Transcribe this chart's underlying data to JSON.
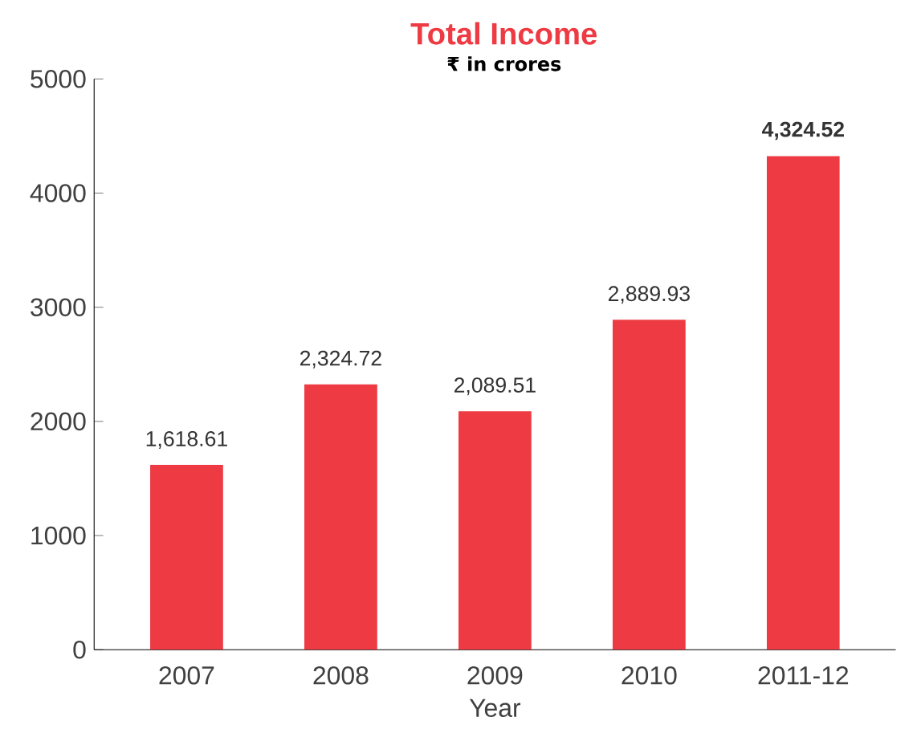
{
  "chart_data": {
    "type": "bar",
    "title": "Total Income",
    "subtitle": "₹ in crores",
    "xlabel": "Year",
    "categories": [
      "2007",
      "2008",
      "2009",
      "2010",
      "2011-12"
    ],
    "values": [
      1618.61,
      2324.72,
      2089.51,
      2889.93,
      4324.52
    ],
    "value_labels": [
      "1,618.61",
      "2,324.72",
      "2,089.51",
      "2,889.93",
      "**4,324.52**"
    ],
    "color": "#ee3a43",
    "ylim": [
      0,
      5000
    ],
    "yticks": [
      0,
      1000,
      2000,
      3000,
      4000,
      5000
    ],
    "grid": false
  }
}
